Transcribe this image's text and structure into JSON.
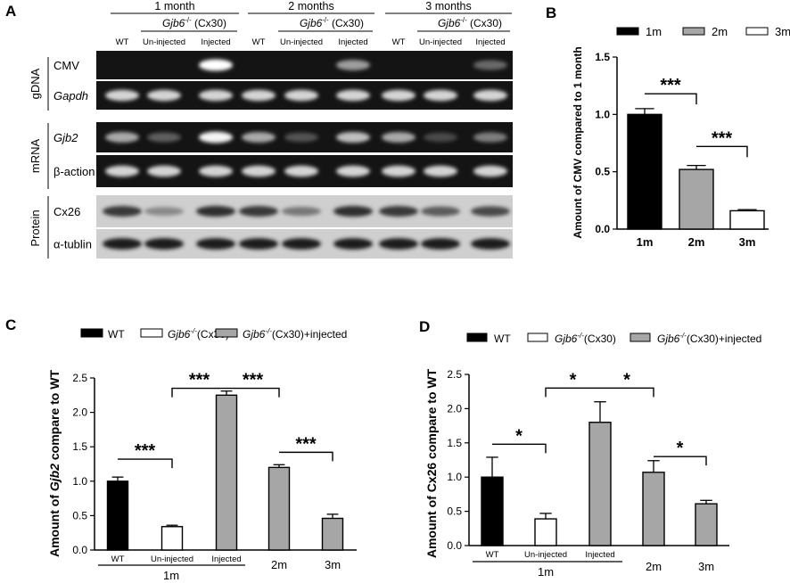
{
  "panelA": {
    "letter": "A",
    "time_groups": [
      "1 month",
      "2 months",
      "3 months"
    ],
    "genotype_label_italic": "Gjb6",
    "genotype_label_sup": "-/-",
    "genotype_label_rest": " (Cx30)",
    "lane_labels": [
      "WT",
      "Un-injected",
      "Injected"
    ],
    "section_labels": [
      "gDNA",
      "mRNA",
      "Protein"
    ],
    "row_labels": [
      "CMV",
      "Gapdh",
      "Gjb2",
      "β-action",
      "Cx26",
      "α-tublin"
    ],
    "band_intensity": {
      "CMV": [
        0,
        0,
        1.0,
        0,
        0,
        0.55,
        0,
        0,
        0.3
      ],
      "Gapdh": [
        0.8,
        0.8,
        0.8,
        0.8,
        0.8,
        0.8,
        0.8,
        0.8,
        0.8
      ],
      "Gjb2": [
        0.6,
        0.25,
        0.95,
        0.6,
        0.2,
        0.7,
        0.6,
        0.15,
        0.4
      ],
      "β-action": [
        0.8,
        0.8,
        0.8,
        0.8,
        0.8,
        0.8,
        0.8,
        0.8,
        0.8
      ],
      "Cx26": [
        0.8,
        0.35,
        0.85,
        0.8,
        0.45,
        0.85,
        0.8,
        0.6,
        0.7
      ],
      "α-tublin": [
        0.95,
        0.95,
        0.95,
        0.95,
        0.95,
        0.95,
        0.95,
        0.95,
        0.95
      ]
    }
  },
  "panelB": {
    "letter": "B",
    "legend": [
      "1m",
      "2m",
      "3m"
    ],
    "ylabel": "Amount of CMV compared to 1 month",
    "significance": [
      "***",
      "***"
    ]
  },
  "panelC": {
    "letter": "C",
    "legend": [
      {
        "pre": "WT",
        "italic": "",
        "sup": "",
        "post": ""
      },
      {
        "pre": "",
        "italic": "Gjb6",
        "sup": "-/-",
        "post": "(Cx30)"
      },
      {
        "pre": "",
        "italic": "Gjb6",
        "sup": "-/-",
        "post": "(Cx30)+injected"
      }
    ],
    "ylabel_pre": "Amount of ",
    "ylabel_italic": "Gjb2",
    "ylabel_post": " compare to WT",
    "group_label": "1m",
    "significance": [
      "***",
      "***",
      "***",
      "***"
    ]
  },
  "panelD": {
    "letter": "D",
    "legend": [
      {
        "pre": "WT",
        "italic": "",
        "sup": "",
        "post": ""
      },
      {
        "pre": "",
        "italic": "Gjb6",
        "sup": "-/-",
        "post": "(Cx30)"
      },
      {
        "pre": "",
        "italic": "Gjb6",
        "sup": "-/-",
        "post": "(Cx30)+injected"
      }
    ],
    "ylabel": "Amount of Cx26 compare to WT",
    "group_label": "1m",
    "significance": [
      "*",
      "*",
      "*",
      "*"
    ]
  },
  "colors": {
    "black": "#000000",
    "gray": "#a6a6a6",
    "white": "#ffffff"
  },
  "chart_data": [
    {
      "type": "bar",
      "panel": "B",
      "categories": [
        "1m",
        "2m",
        "3m"
      ],
      "values": [
        1.0,
        0.52,
        0.16
      ],
      "errors": [
        0.05,
        0.035,
        0.01
      ],
      "colors": [
        "#000000",
        "#a6a6a6",
        "#ffffff"
      ],
      "ylabel": "Amount of CMV compared to 1 month",
      "ylim": [
        0,
        1.5
      ],
      "yticks": [
        "0.0",
        "0.5",
        "1.0",
        "1.5"
      ],
      "legend_position": "top"
    },
    {
      "type": "bar",
      "panel": "C",
      "categories": [
        "WT",
        "Un-injected",
        "Injected",
        "2m",
        "3m"
      ],
      "values": [
        1.0,
        0.34,
        2.25,
        1.2,
        0.46
      ],
      "errors": [
        0.06,
        0.02,
        0.06,
        0.04,
        0.06
      ],
      "colors": [
        "#000000",
        "#ffffff",
        "#a6a6a6",
        "#a6a6a6",
        "#a6a6a6"
      ],
      "ylabel": "Amount of Gjb2 compare to WT",
      "ylim": [
        0,
        2.5
      ],
      "yticks": [
        "0.0",
        "0.5",
        "1.0",
        "1.5",
        "2.0",
        "2.5"
      ],
      "legend_position": "top"
    },
    {
      "type": "bar",
      "panel": "D",
      "categories": [
        "WT",
        "Un-injected",
        "Injected",
        "2m",
        "3m"
      ],
      "values": [
        1.0,
        0.39,
        1.8,
        1.07,
        0.61
      ],
      "errors": [
        0.29,
        0.08,
        0.3,
        0.17,
        0.05
      ],
      "colors": [
        "#000000",
        "#ffffff",
        "#a6a6a6",
        "#a6a6a6",
        "#a6a6a6"
      ],
      "ylabel": "Amount of Cx26 compare to WT",
      "ylim": [
        0,
        2.5
      ],
      "yticks": [
        "0.0",
        "0.5",
        "1.0",
        "1.5",
        "2.0",
        "2.5"
      ],
      "legend_position": "top"
    }
  ]
}
